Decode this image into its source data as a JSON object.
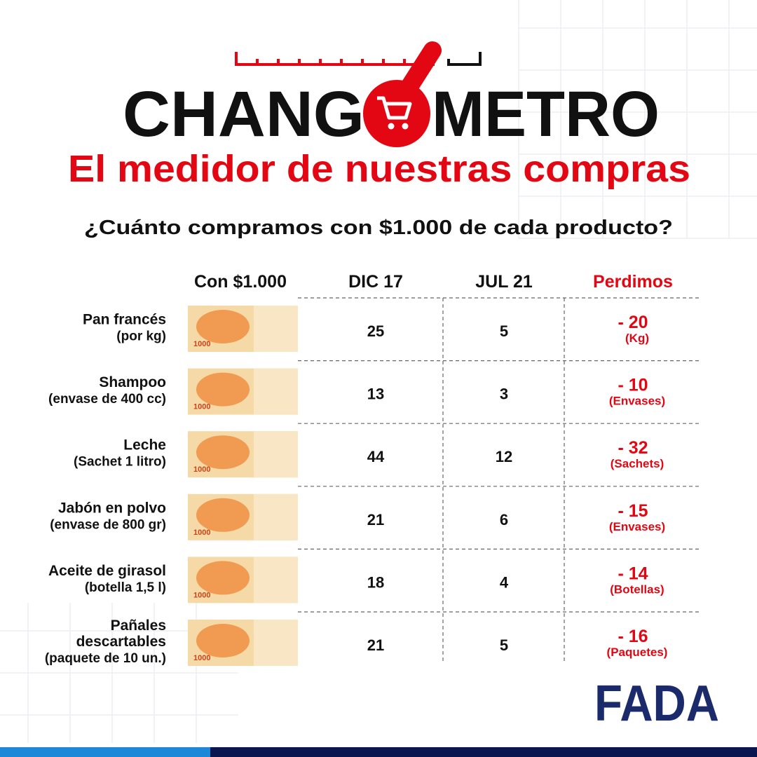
{
  "header": {
    "title_left": "CHANG",
    "title_right": "METRO",
    "subtitle": "El medidor de nuestras compras",
    "question": "¿Cuánto compramos con $1.000 de cada producto?"
  },
  "table": {
    "headers": [
      "Con $1.000",
      "DIC 17",
      "JUL 21",
      "Perdimos"
    ],
    "banknote_label": "1000",
    "rows": [
      {
        "label_lines": [
          "Pan francés",
          "(por kg)"
        ],
        "dic17": "25",
        "jul21": "5",
        "lost": "- 20",
        "unit": "(Kg)"
      },
      {
        "label_lines": [
          "Shampoo",
          "(envase de 400 cc)"
        ],
        "dic17": "13",
        "jul21": "3",
        "lost": "- 10",
        "unit": "(Envases)"
      },
      {
        "label_lines": [
          "Leche",
          "(Sachet 1 litro)"
        ],
        "dic17": "44",
        "jul21": "12",
        "lost": "- 32",
        "unit": "(Sachets)"
      },
      {
        "label_lines": [
          "Jabón en polvo",
          "(envase de 800 gr)"
        ],
        "dic17": "21",
        "jul21": "6",
        "lost": "- 15",
        "unit": "(Envases)"
      },
      {
        "label_lines": [
          "Aceite de girasol",
          "(botella 1,5 l)"
        ],
        "dic17": "18",
        "jul21": "4",
        "lost": "- 14",
        "unit": "(Botellas)"
      },
      {
        "label_lines": [
          "Pañales",
          "descartables",
          "(paquete de 10 un.)"
        ],
        "dic17": "21",
        "jul21": "5",
        "lost": "- 16",
        "unit": "(Paquetes)"
      }
    ]
  },
  "logo": "FADA"
}
